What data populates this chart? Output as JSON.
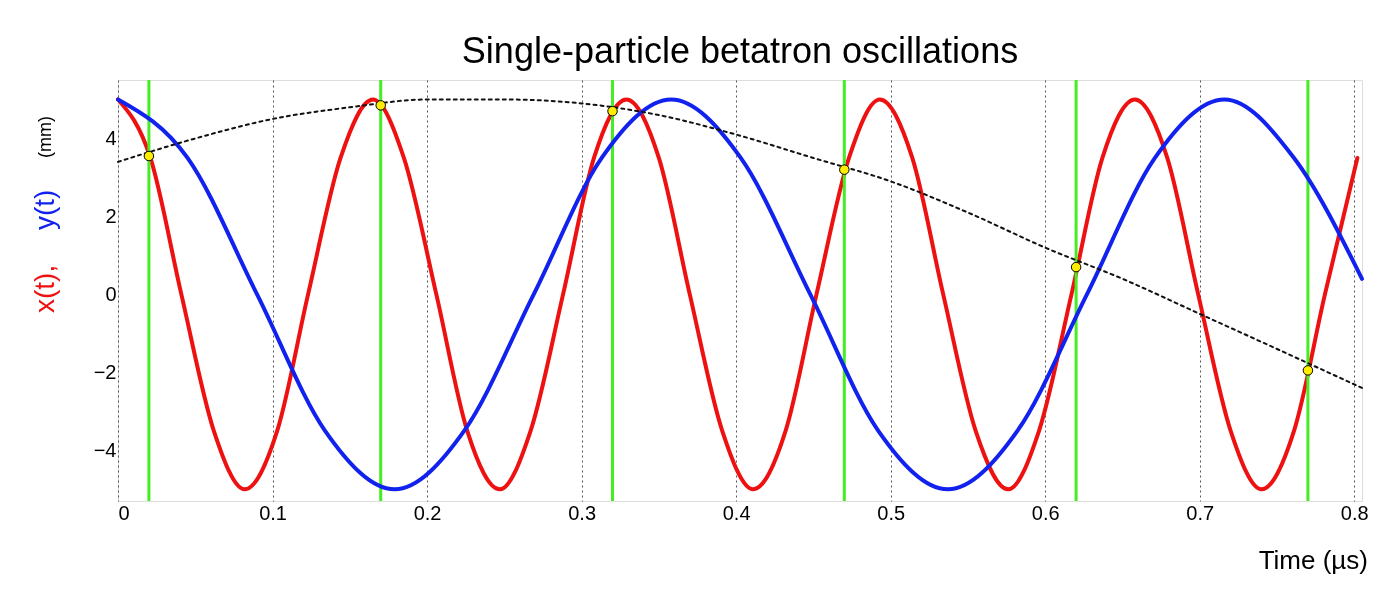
{
  "chart_data": {
    "type": "line",
    "title": "Single-particle betatron oscillations",
    "xlabel": "Time (µs)",
    "ylabel": "(mm)",
    "xlim": [
      0,
      0.805
    ],
    "ylim": [
      -5.3,
      5.5
    ],
    "xticks": [
      0,
      0.1,
      0.2,
      0.3,
      0.4,
      0.5,
      0.6,
      0.7,
      0.8
    ],
    "yticks": [
      -4,
      -2,
      0,
      2,
      4
    ],
    "grid": "x",
    "legend": false,
    "line_style": "solid",
    "marker": "none",
    "series": [
      {
        "name": "x(t),",
        "color": "#ee1111",
        "x": [
          0,
          0.021,
          0.041,
          0.062,
          0.082,
          0.103,
          0.123,
          0.144,
          0.165,
          0.185,
          0.206,
          0.226,
          0.247,
          0.267,
          0.288,
          0.308,
          0.329,
          0.35,
          0.37,
          0.391,
          0.411,
          0.432,
          0.452,
          0.473,
          0.493,
          0.514,
          0.534,
          0.555,
          0.576,
          0.596,
          0.617,
          0.637,
          0.658,
          0.679,
          0.699,
          0.72,
          0.74,
          0.761,
          0.781,
          0.802
        ],
        "values": [
          5,
          3.5,
          0,
          -3.5,
          -5,
          -3.5,
          0,
          3.5,
          5,
          3.5,
          0,
          -3.5,
          -5,
          -3.5,
          0,
          3.5,
          5,
          3.5,
          0,
          -3.5,
          -5,
          -3.5,
          0,
          3.5,
          5,
          3.5,
          0,
          -3.5,
          -5,
          -3.5,
          0,
          3.5,
          5,
          3.5,
          0,
          -3.5,
          -5,
          -3.5,
          0,
          3.5
        ]
      },
      {
        "name": "y(t)",
        "color": "#1122ee",
        "x": [
          0,
          0.045,
          0.09,
          0.134,
          0.179,
          0.224,
          0.269,
          0.313,
          0.358,
          0.403,
          0.448,
          0.492,
          0.537,
          0.582,
          0.627,
          0.671,
          0.716,
          0.761,
          0.805
        ],
        "values": [
          5,
          3.5,
          0,
          -3.5,
          -5,
          -3.5,
          0,
          3.5,
          5,
          3.5,
          0,
          -3.5,
          -5,
          -3.5,
          0,
          3.5,
          5,
          3.5,
          0.4
        ]
      },
      {
        "color": "#111111",
        "line_style": "dotted",
        "x": [
          0,
          0.05,
          0.1,
          0.15,
          0.2,
          0.25,
          0.3,
          0.35,
          0.4,
          0.45,
          0.5,
          0.55,
          0.6,
          0.65,
          0.7,
          0.75,
          0.805
        ],
        "values": [
          3.4,
          4.0,
          4.5,
          4.8,
          5.0,
          5.0,
          4.9,
          4.6,
          4.1,
          3.5,
          2.9,
          2.1,
          1.2,
          0.4,
          -0.5,
          -1.4,
          -2.4
        ]
      },
      {
        "type": "scatter",
        "marker": "circle",
        "color": "#ffee00",
        "x": [
          0.02,
          0.17,
          0.32,
          0.47,
          0.62,
          0.77
        ],
        "values": [
          3.55,
          4.85,
          4.7,
          3.2,
          0.7,
          -1.95
        ]
      }
    ],
    "ref_lines": [
      {
        "axis": "x",
        "value": 0.02,
        "color": "#44ee22"
      },
      {
        "axis": "x",
        "value": 0.17,
        "color": "#44ee22"
      },
      {
        "axis": "x",
        "value": 0.32,
        "color": "#44ee22"
      },
      {
        "axis": "x",
        "value": 0.47,
        "color": "#44ee22"
      },
      {
        "axis": "x",
        "value": 0.62,
        "color": "#44ee22"
      },
      {
        "axis": "x",
        "value": 0.77,
        "color": "#44ee22"
      }
    ]
  }
}
